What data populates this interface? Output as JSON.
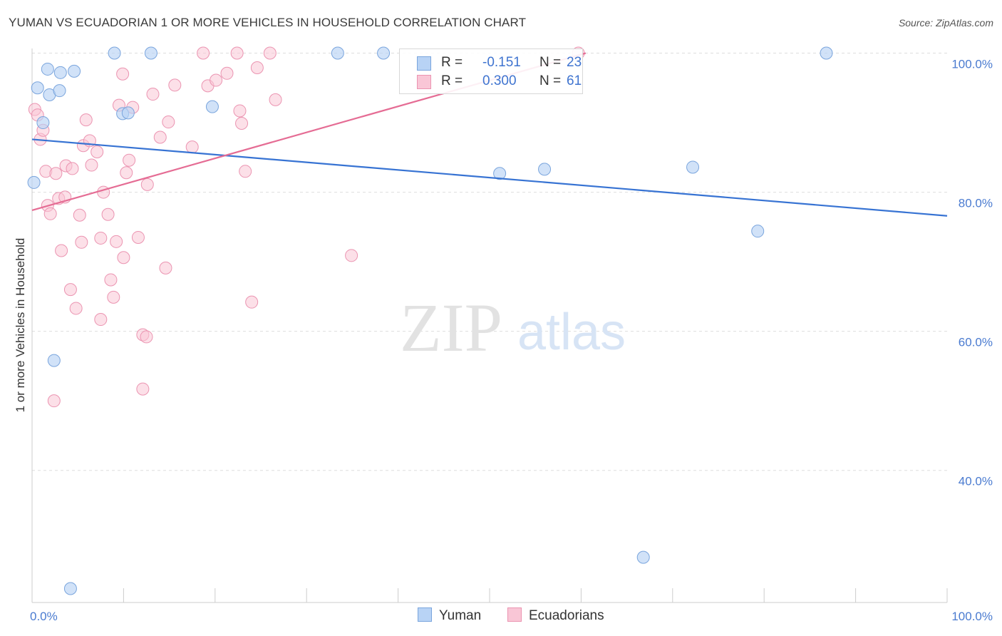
{
  "title": "YUMAN VS ECUADORIAN 1 OR MORE VEHICLES IN HOUSEHOLD CORRELATION CHART",
  "source": "Source: ZipAtlas.com",
  "watermark": {
    "zip": "ZIP",
    "atlas": "atlas"
  },
  "legend_stats": [
    {
      "r_label": "R =",
      "r_value": "-0.151",
      "n_label": "N =",
      "n_value": "23"
    },
    {
      "r_label": "R =",
      "r_value": "0.300",
      "n_label": "N =",
      "n_value": "61"
    }
  ],
  "bottom_legend": [
    "Yuman",
    "Ecuadorians"
  ],
  "chart_data": {
    "type": "scatter",
    "title": "YUMAN VS ECUADORIAN 1 OR MORE VEHICLES IN HOUSEHOLD CORRELATION CHART",
    "xlabel": "",
    "ylabel": "1 or more Vehicles in Household",
    "xlim": [
      0,
      100
    ],
    "ylim": [
      21,
      102
    ],
    "x_tick_labels": [
      {
        "value": 0,
        "label": "0.0%"
      },
      {
        "value": 100,
        "label": "100.0%"
      }
    ],
    "y_tick_labels": [
      {
        "value": 100,
        "label": "100.0%"
      },
      {
        "value": 80,
        "label": "80.0%"
      },
      {
        "value": 60,
        "label": "60.0%"
      },
      {
        "value": 40,
        "label": "40.0%"
      }
    ],
    "gridlines": [
      100,
      80,
      60,
      40
    ],
    "colors": {
      "yuman_fill": "#b8d3f5",
      "yuman_stroke": "#7aa5dd",
      "yuman_line": "#3773d3",
      "ecu_fill": "#f9c6d6",
      "ecu_stroke": "#eb94b1",
      "ecu_line": "#e56c94",
      "grid": "#dddddd",
      "axis": "#cccccc",
      "tick_text": "#4a7bd0"
    },
    "series": [
      {
        "name": "Yuman",
        "r": -0.151,
        "n": 23,
        "trend": {
          "x": [
            0,
            100
          ],
          "y": [
            87.6,
            76.6
          ]
        },
        "points": [
          {
            "x": 0.2,
            "y": 81.4
          },
          {
            "x": 0.6,
            "y": 95.0
          },
          {
            "x": 1.2,
            "y": 90.0
          },
          {
            "x": 1.7,
            "y": 97.7
          },
          {
            "x": 1.9,
            "y": 94.0
          },
          {
            "x": 3.0,
            "y": 94.6
          },
          {
            "x": 3.1,
            "y": 97.2
          },
          {
            "x": 4.6,
            "y": 97.4
          },
          {
            "x": 9.0,
            "y": 100.0
          },
          {
            "x": 9.9,
            "y": 91.3
          },
          {
            "x": 10.5,
            "y": 91.4
          },
          {
            "x": 13.0,
            "y": 100.0
          },
          {
            "x": 19.7,
            "y": 92.3
          },
          {
            "x": 33.4,
            "y": 100.0
          },
          {
            "x": 38.4,
            "y": 100.0
          },
          {
            "x": 51.1,
            "y": 82.7
          },
          {
            "x": 56.0,
            "y": 83.3
          },
          {
            "x": 72.2,
            "y": 83.6
          },
          {
            "x": 79.3,
            "y": 74.4
          },
          {
            "x": 86.8,
            "y": 100.0
          },
          {
            "x": 2.4,
            "y": 55.8
          },
          {
            "x": 66.8,
            "y": 27.5
          },
          {
            "x": 4.2,
            "y": 23.0
          }
        ]
      },
      {
        "name": "Ecuadorians",
        "r": 0.3,
        "n": 61,
        "trend": {
          "x": [
            0,
            60.5
          ],
          "y": [
            77.4,
            100.0
          ]
        },
        "points": [
          {
            "x": 0.3,
            "y": 91.9
          },
          {
            "x": 0.6,
            "y": 91.1
          },
          {
            "x": 0.9,
            "y": 87.6
          },
          {
            "x": 1.2,
            "y": 88.9
          },
          {
            "x": 1.5,
            "y": 83.0
          },
          {
            "x": 1.7,
            "y": 78.1
          },
          {
            "x": 2.0,
            "y": 76.9
          },
          {
            "x": 2.6,
            "y": 82.7
          },
          {
            "x": 2.9,
            "y": 79.1
          },
          {
            "x": 3.2,
            "y": 71.6
          },
          {
            "x": 3.6,
            "y": 79.3
          },
          {
            "x": 3.7,
            "y": 83.8
          },
          {
            "x": 4.2,
            "y": 66.0
          },
          {
            "x": 4.4,
            "y": 83.4
          },
          {
            "x": 4.8,
            "y": 63.3
          },
          {
            "x": 5.2,
            "y": 76.7
          },
          {
            "x": 5.4,
            "y": 72.8
          },
          {
            "x": 5.6,
            "y": 86.7
          },
          {
            "x": 5.9,
            "y": 90.4
          },
          {
            "x": 6.3,
            "y": 87.4
          },
          {
            "x": 6.5,
            "y": 83.9
          },
          {
            "x": 7.1,
            "y": 85.8
          },
          {
            "x": 7.5,
            "y": 73.4
          },
          {
            "x": 7.5,
            "y": 61.7
          },
          {
            "x": 7.8,
            "y": 80.0
          },
          {
            "x": 8.3,
            "y": 76.8
          },
          {
            "x": 8.6,
            "y": 67.4
          },
          {
            "x": 8.9,
            "y": 64.9
          },
          {
            "x": 9.2,
            "y": 72.9
          },
          {
            "x": 9.5,
            "y": 92.5
          },
          {
            "x": 9.9,
            "y": 97.0
          },
          {
            "x": 10.0,
            "y": 70.6
          },
          {
            "x": 10.3,
            "y": 82.8
          },
          {
            "x": 10.6,
            "y": 84.6
          },
          {
            "x": 11.0,
            "y": 92.2
          },
          {
            "x": 11.6,
            "y": 73.5
          },
          {
            "x": 12.1,
            "y": 59.5
          },
          {
            "x": 12.1,
            "y": 51.7
          },
          {
            "x": 12.5,
            "y": 59.2
          },
          {
            "x": 12.6,
            "y": 81.1
          },
          {
            "x": 13.2,
            "y": 94.1
          },
          {
            "x": 14.0,
            "y": 87.9
          },
          {
            "x": 14.6,
            "y": 69.1
          },
          {
            "x": 14.9,
            "y": 90.1
          },
          {
            "x": 15.6,
            "y": 95.4
          },
          {
            "x": 17.5,
            "y": 86.5
          },
          {
            "x": 18.7,
            "y": 100.0
          },
          {
            "x": 19.2,
            "y": 95.3
          },
          {
            "x": 20.1,
            "y": 96.1
          },
          {
            "x": 21.3,
            "y": 97.1
          },
          {
            "x": 22.4,
            "y": 100.0
          },
          {
            "x": 22.7,
            "y": 91.7
          },
          {
            "x": 22.9,
            "y": 89.9
          },
          {
            "x": 23.3,
            "y": 83.0
          },
          {
            "x": 24.0,
            "y": 64.2
          },
          {
            "x": 24.6,
            "y": 97.9
          },
          {
            "x": 26.0,
            "y": 100.0
          },
          {
            "x": 26.6,
            "y": 93.3
          },
          {
            "x": 34.9,
            "y": 70.9
          },
          {
            "x": 59.7,
            "y": 100.0
          },
          {
            "x": 2.4,
            "y": 50.0
          }
        ]
      }
    ]
  }
}
